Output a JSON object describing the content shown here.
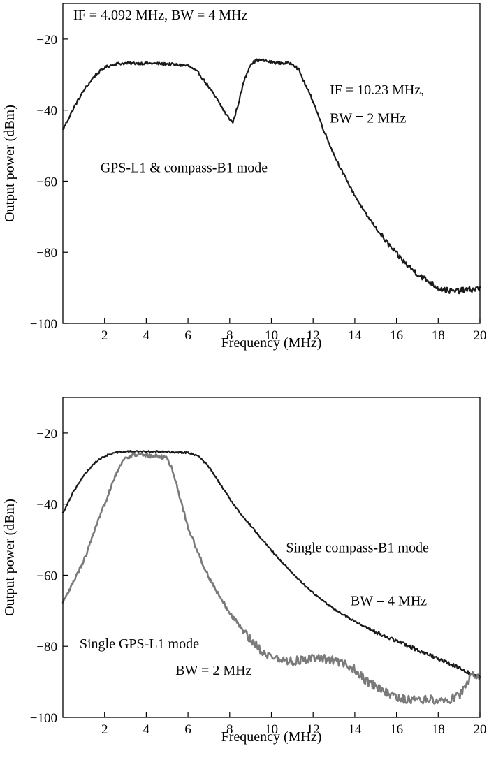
{
  "chart_data": [
    {
      "type": "line",
      "xlabel": "Frequency (MHz)",
      "ylabel": "Output power (dBm)",
      "xlim": [
        0,
        20
      ],
      "ylim": [
        -100,
        -10
      ],
      "xticks": [
        2,
        4,
        6,
        8,
        10,
        12,
        14,
        16,
        18,
        20
      ],
      "yticks": [
        -100,
        -80,
        -60,
        -40,
        -20
      ],
      "tick_labels_x": [
        "2",
        "4",
        "6",
        "8",
        "10",
        "12",
        "14",
        "16",
        "18",
        "20"
      ],
      "tick_labels_y": [
        "−100",
        "−80",
        "−60",
        "−40",
        "−20"
      ],
      "grid": false,
      "annotations": [
        {
          "text": "IF = 4.092 MHz, BW = 4 MHz",
          "x": 0.5,
          "y": -14.5
        },
        {
          "text": "IF = 10.23 MHz,",
          "x": 12.8,
          "y": -35.5
        },
        {
          "text": "BW = 2 MHz",
          "x": 12.8,
          "y": -43.5
        },
        {
          "text": "GPS-L1 & compass-B1 mode",
          "x": 1.8,
          "y": -57.5
        }
      ],
      "series": [
        {
          "color": "#1a1a1a",
          "noise": 0.4,
          "x": [
            0,
            0.3,
            0.6,
            1.0,
            1.5,
            2.0,
            2.5,
            3.0,
            4.0,
            5.0,
            6.0,
            6.5,
            7.0,
            7.5,
            7.8,
            8.0,
            8.15,
            8.4,
            8.7,
            9.0,
            9.3,
            9.6,
            10.0,
            10.5,
            11.0,
            11.3,
            11.6,
            12.0,
            12.5,
            13.0,
            13.5,
            14.0,
            14.5,
            15.0,
            15.5,
            16.0,
            16.5,
            17.0,
            17.5,
            18.0,
            18.5,
            18.8,
            19.0,
            19.5,
            20.0
          ],
          "y": [
            -45.5,
            -42,
            -38.5,
            -34.5,
            -30.5,
            -28,
            -27,
            -26.8,
            -26.8,
            -27,
            -27.5,
            -29.5,
            -33.5,
            -38,
            -41,
            -42.5,
            -43.5,
            -38.5,
            -31.5,
            -27,
            -26,
            -26,
            -26.5,
            -26.8,
            -26.8,
            -28.5,
            -32.5,
            -37.5,
            -45.5,
            -52.5,
            -58.5,
            -64,
            -69,
            -73,
            -77,
            -80.5,
            -83.5,
            -86,
            -88,
            -90,
            -90.8,
            -91,
            -90.8,
            -90.5,
            -90.2
          ]
        }
      ]
    },
    {
      "type": "line",
      "xlabel": "Frequency (MHz)",
      "ylabel": "Output power (dBm)",
      "xlim": [
        0,
        20
      ],
      "ylim": [
        -100,
        -10
      ],
      "xticks": [
        2,
        4,
        6,
        8,
        10,
        12,
        14,
        16,
        18,
        20
      ],
      "yticks": [
        -100,
        -80,
        -60,
        -40,
        -20
      ],
      "tick_labels_x": [
        "2",
        "4",
        "6",
        "8",
        "10",
        "12",
        "14",
        "16",
        "18",
        "20"
      ],
      "tick_labels_y": [
        "−100",
        "−80",
        "−60",
        "−40",
        "−20"
      ],
      "grid": false,
      "annotations": [
        {
          "text": "Single compass-B1 mode",
          "x": 10.7,
          "y": -53.5
        },
        {
          "text": "BW = 4 MHz",
          "x": 13.8,
          "y": -68.5
        },
        {
          "text": "Single GPS-L1 mode",
          "x": 0.8,
          "y": -80.5
        },
        {
          "text": "BW = 2 MHz",
          "x": 5.4,
          "y": -88
        }
      ],
      "series": [
        {
          "color": "#1a1a1a",
          "noise": 0.25,
          "x": [
            0,
            0.5,
            1.0,
            1.5,
            2.0,
            2.5,
            3.0,
            4.0,
            5.0,
            6.0,
            6.5,
            7.0,
            7.5,
            8.0,
            8.5,
            9.0,
            9.5,
            10.0,
            11.0,
            12.0,
            13.0,
            14.0,
            15.0,
            16.0,
            17.0,
            18.0,
            19.0,
            19.5,
            20.0
          ],
          "y": [
            -42.5,
            -36.5,
            -32,
            -28.5,
            -26.5,
            -25.5,
            -25.2,
            -25.2,
            -25.3,
            -25.5,
            -26.5,
            -29.5,
            -34,
            -38.5,
            -42.5,
            -46,
            -49.5,
            -53,
            -59.5,
            -65,
            -69.5,
            -73,
            -76,
            -78.5,
            -81,
            -83.5,
            -86,
            -87.5,
            -88.5
          ]
        },
        {
          "color": "#7a7a7a",
          "noise": 0.6,
          "x": [
            0,
            0.5,
            1.0,
            1.5,
            2.0,
            2.5,
            2.8,
            3.0,
            3.5,
            4.0,
            4.5,
            5.0,
            5.3,
            5.6,
            6.0,
            6.5,
            7.0,
            7.5,
            8.0,
            8.5,
            9.0,
            9.5,
            10.0,
            10.5,
            11.0,
            11.5,
            12.0,
            12.5,
            13.0,
            13.5,
            14.0,
            14.5,
            15.0,
            15.5,
            16.0,
            16.5,
            17.0,
            17.5,
            18.0,
            18.5,
            19.0,
            19.3,
            19.6,
            20.0
          ],
          "y": [
            -68,
            -62,
            -56,
            -48,
            -40,
            -32,
            -28.5,
            -27,
            -26,
            -26.3,
            -26.5,
            -27,
            -31,
            -38,
            -46.5,
            -54,
            -60.5,
            -66,
            -70.5,
            -74.5,
            -78,
            -81,
            -83,
            -84,
            -84.2,
            -83.8,
            -83.5,
            -83.5,
            -84,
            -85,
            -86.5,
            -89.5,
            -91.5,
            -93,
            -94.5,
            -95,
            -95,
            -95,
            -95,
            -95,
            -94,
            -91,
            -88,
            -88.5
          ]
        }
      ]
    }
  ]
}
